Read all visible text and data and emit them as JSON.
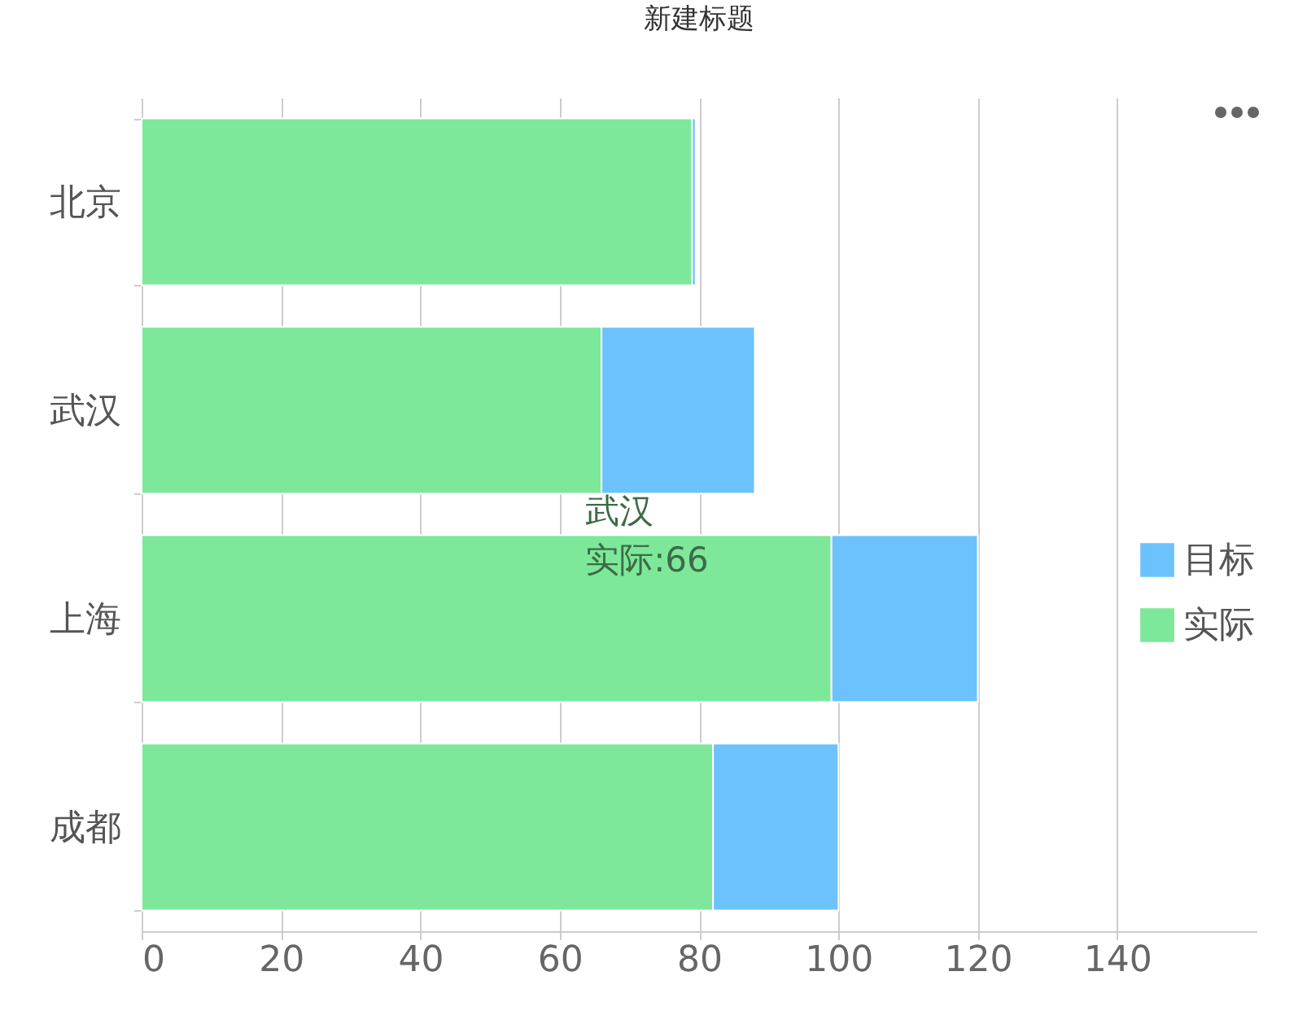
{
  "chart_data": {
    "type": "bar",
    "title": "新建标题",
    "orientation": "horizontal",
    "stacked": true,
    "categories": [
      "北京",
      "武汉",
      "上海",
      "成都"
    ],
    "series": [
      {
        "name": "实际",
        "color": "#7de89a",
        "values": [
          79,
          66,
          99,
          82
        ]
      },
      {
        "name": "目标",
        "color": "#6cc2fc",
        "values": [
          0.5,
          22,
          21,
          18
        ]
      }
    ],
    "xlim": [
      0,
      160
    ],
    "xticks": [
      0,
      20,
      40,
      60,
      80,
      100,
      120,
      140
    ],
    "grid": "x",
    "legend": "right",
    "annotations": [
      {
        "text": "武汉",
        "x": 66,
        "y": "武汉"
      },
      {
        "text": "实际:66",
        "x": 66,
        "y": "武汉"
      }
    ]
  }
}
